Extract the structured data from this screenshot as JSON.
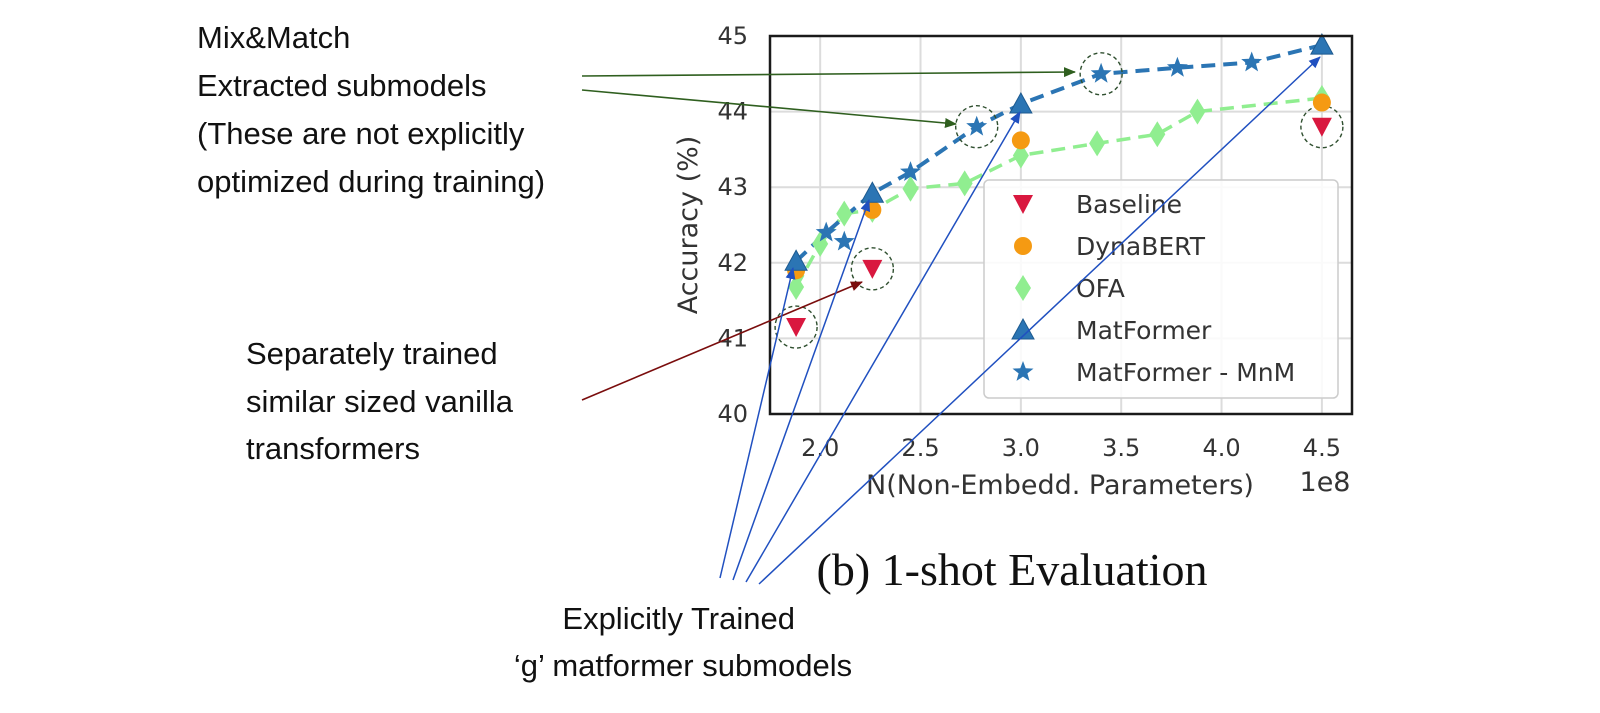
{
  "colors": {
    "baseline": "#d9183f",
    "dynabert": "#f59a12",
    "ofa": "#90ee90",
    "matformer": "#2b75b4",
    "mnm": "#2b75b4",
    "green_arrow": "#2f5f1f",
    "red_arrow": "#7a0d0d",
    "blue_arrow": "#2050c0"
  },
  "annotations": {
    "mix_match": [
      "Mix&Match",
      "Extracted submodels",
      "(These are not explicitly",
      "optimized during training)"
    ],
    "separately": [
      "Separately trained",
      "similar sized vanilla",
      "transformers"
    ],
    "explicitly": [
      "Explicitly Trained",
      "‘g’ matformer submodels"
    ]
  },
  "caption": "(b) 1-shot Evaluation",
  "chart_data": {
    "type": "line",
    "title": "",
    "xlabel": "N(Non-Embedd. Parameters)",
    "ylabel": "Accuracy (%)",
    "x_scale_label": "1e8",
    "xlim": [
      1.75,
      4.65
    ],
    "ylim": [
      40,
      45
    ],
    "xticks": [
      2.0,
      2.5,
      3.0,
      3.5,
      4.0,
      4.5
    ],
    "yticks": [
      40,
      41,
      42,
      43,
      44,
      45
    ],
    "grid": true,
    "legend_position": "lower-right",
    "series": [
      {
        "name": "Baseline",
        "marker": "triangle-down",
        "line": "none",
        "x": [
          1.88,
          2.26,
          4.5
        ],
        "y": [
          41.15,
          41.92,
          43.8
        ]
      },
      {
        "name": "DynaBERT",
        "marker": "circle",
        "line": "none",
        "x": [
          1.88,
          2.26,
          3.0,
          4.5
        ],
        "y": [
          41.9,
          42.7,
          43.62,
          44.12
        ]
      },
      {
        "name": "OFA",
        "marker": "diamond",
        "line": "dashed",
        "x": [
          1.88,
          2.0,
          2.12,
          2.26,
          2.45,
          2.72,
          3.0,
          3.38,
          3.68,
          3.88,
          4.5
        ],
        "y": [
          41.68,
          42.25,
          42.65,
          42.7,
          42.98,
          43.05,
          43.42,
          43.58,
          43.7,
          44.0,
          44.18
        ]
      },
      {
        "name": "MatFormer",
        "marker": "triangle-up",
        "line": "dashed",
        "x": [
          1.88,
          2.26,
          3.0,
          4.5
        ],
        "y": [
          42.02,
          42.92,
          44.1,
          44.88
        ]
      },
      {
        "name": "MatFormer - MnM",
        "marker": "star",
        "line": "none",
        "x": [
          2.03,
          2.12,
          2.45,
          2.78,
          3.4,
          3.78,
          4.15
        ],
        "y": [
          42.4,
          42.28,
          43.2,
          43.8,
          44.5,
          44.58,
          44.65
        ]
      }
    ],
    "highlighted": [
      {
        "x": 1.88,
        "y": 41.15
      },
      {
        "x": 2.26,
        "y": 41.92
      },
      {
        "x": 4.5,
        "y": 43.8
      },
      {
        "x": 2.78,
        "y": 43.8
      },
      {
        "x": 3.4,
        "y": 44.5
      }
    ]
  }
}
